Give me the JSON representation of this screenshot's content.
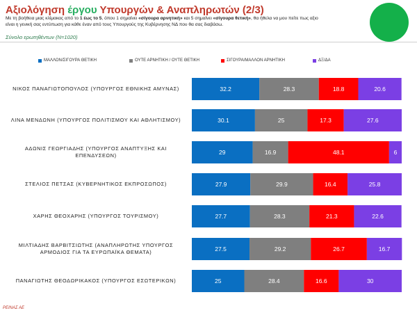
{
  "header": {
    "title_part1": "Αξιολόγηση ",
    "title_highlight": "έργου",
    "title_part2": " Υπουργών & Αναπληρωτών (2/3)",
    "intro_line1_a": "Με τη βοήθεια μιας κλίμακας από το ",
    "intro_line1_b": "1 έως το 5",
    "intro_line1_c": ", όπου 1 σημαίνει ",
    "intro_line1_d": "«σίγουρα αρνητική»",
    "intro_line1_e": " και 5 σημαίνει ",
    "intro_line1_f": "«σίγουρα θετική»",
    "intro_line1_g": ",  θα ήθελα να μου πείτε πως αξιο",
    "intro_line2": "είναι η γενική σας εντύπωση για κάθε έναν  από τους Υπουργούς της  Κυβέρνησης ΝΔ που θα σας διαβάσω.",
    "base_text": "Σύνολο ερωτηθέντων (Ν=1020)"
  },
  "footer": {
    "text": "ΡΕΙΝΑΣ ΑΕ"
  },
  "colors": {
    "positive": "#0a6fc2",
    "neutral": "#7f7f7f",
    "negative": "#ff0000",
    "dk": "#7b3fe4",
    "logo": "#14b04a"
  },
  "chart_data": {
    "type": "bar",
    "orientation": "horizontal",
    "stacked": true,
    "title": "Αξιολόγηση έργου Υπουργών & Αναπληρωτών (2/3)",
    "xlim": [
      0,
      100
    ],
    "legend_position": "top",
    "categories": [
      "ΝΙΚΟΣ ΠΑΝΑΓΙΩΤΟΠΟΥΛΟΣ (ΥΠΟΥΡΓΟΣ ΕΘΝΙΚΗΣ ΑΜΥΝΑΣ)",
      "ΛΙΝΑ ΜΕΝΔΩΝΗ (ΥΠΟΥΡΓΟΣ ΠΟΛΙΤΙΣΜΟΥ ΚΑΙ ΑΘΛΗΤΙΣΜΟΥ)",
      "ΑΔΩΝΙΣ ΓΕΩΡΓΙΑΔΗΣ (ΥΠΟΥΡΓΟΣ ΑΝΑΠΤΥΞΗΣ ΚΑΙ ΕΠΕΝΔΥΣΕΩΝ)",
      "ΣΤΕΛΙΟΣ ΠΕΤΣΑΣ (ΚΥΒΕΡΝΗΤΙΚΟΣ ΕΚΠΡΟΣΩΠΟΣ)",
      "ΧΑΡΗΣ ΘΕΟΧΑΡΗΣ (ΥΠΟΥΡΓΟΣ ΤΟΥΡΙΣΜΟΥ)",
      "ΜΙΛΤΙΑΔΗΣ ΒΑΡΒΙΤΣΙΩΤΗΣ (ΑΝΑΠΛΗΡΩΤΗΣ ΥΠΟΥΡΓΟΣ ΑΡΜΟΔΙΟΣ ΓΙΑ ΤΑ ΕΥΡΩΠΑΪΚΑ ΘΕΜΑΤΑ)",
      "ΠΑΝΑΓΙΩΤΗΣ ΘΕΟΔΩΡΙΚΑΚΟΣ (ΥΠΟΥΡΓΟΣ ΕΣΩΤΕΡΙΚΩΝ)"
    ],
    "category_lines": [
      [
        "ΝΙΚΟΣ ΠΑΝΑΓΙΩΤΟΠΟΥΛΟΣ (ΥΠΟΥΡΓΟΣ ΕΘΝΙΚΗΣ ΑΜΥΝΑΣ)"
      ],
      [
        "ΛΙΝΑ ΜΕΝΔΩΝΗ (ΥΠΟΥΡΓΟΣ ΠΟΛΙΤΙΣΜΟΥ ΚΑΙ ΑΘΛΗΤΙΣΜΟΥ)"
      ],
      [
        "ΑΔΩΝΙΣ ΓΕΩΡΓΙΑΔΗΣ (ΥΠΟΥΡΓΟΣ ΑΝΑΠΤΥΞΗΣ ΚΑΙ",
        "ΕΠΕΝΔΥΣΕΩΝ)"
      ],
      [
        "ΣΤΕΛΙΟΣ ΠΕΤΣΑΣ (ΚΥΒΕΡΝΗΤΙΚΟΣ ΕΚΠΡΟΣΩΠΟΣ)"
      ],
      [
        "ΧΑΡΗΣ ΘΕΟΧΑΡΗΣ (ΥΠΟΥΡΓΟΣ ΤΟΥΡΙΣΜΟΥ)"
      ],
      [
        "ΜΙΛΤΙΑΔΗΣ ΒΑΡΒΙΤΣΙΩΤΗΣ (ΑΝΑΠΛΗΡΩΤΗΣ ΥΠΟΥΡΓΟΣ",
        "ΑΡΜΟΔΙΟΣ ΓΙΑ ΤΑ ΕΥΡΩΠΑΪΚΑ ΘΕΜΑΤΑ)"
      ],
      [
        "ΠΑΝΑΓΙΩΤΗΣ ΘΕΟΔΩΡΙΚΑΚΟΣ (ΥΠΟΥΡΓΟΣ ΕΣΩΤΕΡΙΚΩΝ)"
      ]
    ],
    "series": [
      {
        "name": "ΜΑΛΛΟΝ/ΣΙΓΟΥΡΑ ΘΕΤΙΚΗ",
        "color": "#0a6fc2",
        "values": [
          32.2,
          30.1,
          29,
          27.9,
          27.7,
          27.5,
          25
        ]
      },
      {
        "name": "ΟΥΤΕ ΑΡΝΗΤΙΚΗ / ΟΥΤΕ ΘΕΤΙΚΗ",
        "color": "#7f7f7f",
        "values": [
          28.3,
          25,
          16.9,
          29.9,
          28.3,
          29.2,
          28.4
        ]
      },
      {
        "name": "ΣΙΓΟΥΡΑ/ΜΑΛΛΟΝ ΑΡΝΗΤΙΚΗ",
        "color": "#ff0000",
        "values": [
          18.8,
          17.3,
          48.1,
          16.4,
          21.3,
          26.7,
          16.6
        ]
      },
      {
        "name": "ΔΞ/ΔΑ",
        "color": "#7b3fe4",
        "values": [
          20.6,
          27.6,
          6,
          25.8,
          22.6,
          16.7,
          30
        ]
      }
    ]
  }
}
